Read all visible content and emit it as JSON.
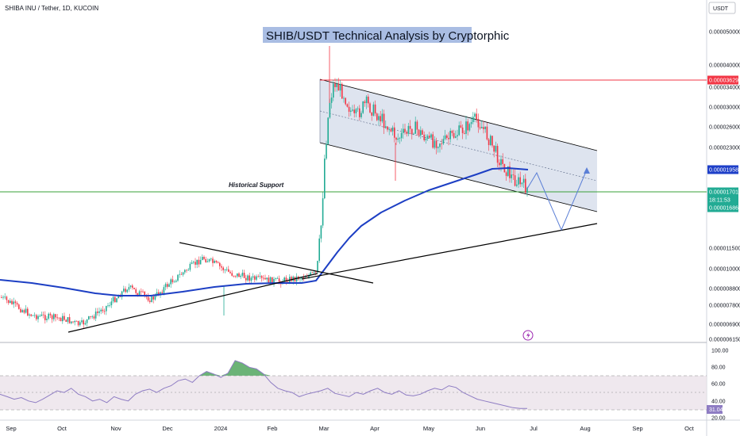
{
  "header": {
    "symbol": "SHIBA INU / Tether, 1D, KUCOIN",
    "currency": "USDT"
  },
  "chart_data": {
    "type": "candlestick",
    "title": "SHIB/USDT Technical Analysis by Cryptorphic",
    "x_ticks": [
      "Sep",
      "Oct",
      "Nov",
      "Dec",
      "2024",
      "Feb",
      "Mar",
      "Apr",
      "May",
      "Jun",
      "Jul",
      "Aug",
      "Sep",
      "Oct"
    ],
    "y_ticks": [
      "0.000050000",
      "0.000040000",
      "0.000034000",
      "0.000030000",
      "0.000026000",
      "0.000023000",
      "0.000011500",
      "0.000010000",
      "0.000008800",
      "0.000007800",
      "0.000006900",
      "0.000006150"
    ],
    "y_range": [
      6.15e-06,
      5e-05
    ],
    "y_scale": "log",
    "price_badges": [
      {
        "label": "0.000036293",
        "color": "#f23645"
      },
      {
        "label": "0.000019586",
        "color": "#1e3fc8"
      },
      {
        "label": "0.000017015",
        "color": "#22ab94"
      },
      {
        "label": "18:11:53",
        "color": "#22ab94"
      },
      {
        "label": "0.000016864",
        "color": "#22ab94"
      }
    ],
    "annotations": [
      {
        "text": "Historical Support"
      }
    ],
    "levels": {
      "resistance": 3.6293e-05,
      "historical_support": 1.7015e-05
    },
    "series": [
      {
        "type": "candles",
        "values": [
          7.8e-06,
          7.6e-06,
          7.3e-06,
          7.1e-06,
          7e-06,
          6.9e-06,
          7.2e-06,
          6.8e-06,
          6.5e-06,
          7.2e-06,
          8.2e-06,
          8.5e-06,
          8.3e-06,
          8.8e-06,
          9.5e-06,
          1.1e-05,
          1.05e-05,
          9.8e-06,
          9.4e-06,
          9.2e-06,
          9.6e-06,
          9.4e-06,
          1.8e-05,
          3.45e-05,
          3.1e-05,
          2.8e-05,
          2.6e-05,
          2.4e-05,
          2.55e-05,
          2.45e-05,
          2.5e-05,
          2.7e-05,
          2.2e-05,
          1.7e-05
        ]
      },
      {
        "type": "line",
        "name": "",
        "color": "#1d3fc4"
      }
    ],
    "rsi": {
      "y_ticks": [
        "100.00",
        "80.00",
        "60.00",
        "40.00",
        "20.00"
      ],
      "y_range": [
        20,
        100
      ],
      "current": "31.04",
      "bands": [
        30,
        70
      ],
      "values": [
        48,
        45,
        42,
        44,
        40,
        38,
        42,
        47,
        52,
        50,
        55,
        48,
        45,
        40,
        42,
        38,
        45,
        42,
        40,
        48,
        52,
        54,
        50,
        55,
        58,
        64,
        66,
        62,
        70,
        75,
        72,
        68,
        73,
        88,
        85,
        80,
        78,
        72,
        62,
        55,
        52,
        50,
        45,
        48,
        50,
        52,
        55,
        49,
        47,
        45,
        50,
        48,
        52,
        55,
        50,
        48,
        52,
        47,
        46,
        48,
        52,
        55,
        53,
        58,
        56,
        50,
        46,
        42,
        40,
        38,
        36,
        34,
        32,
        31,
        31.04
      ]
    }
  }
}
